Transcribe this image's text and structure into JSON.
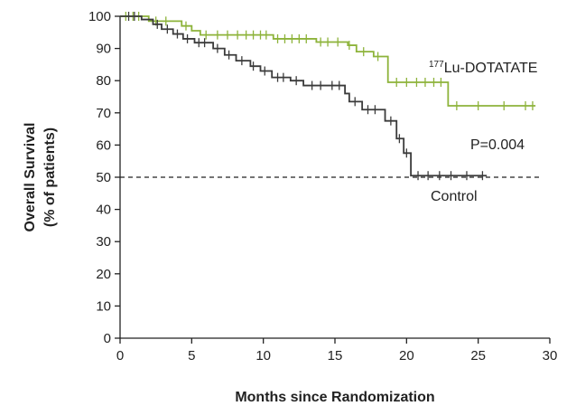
{
  "chart_data": {
    "type": "line",
    "subtype": "kaplan-meier",
    "title": "",
    "xlabel": "Months since Randomization",
    "ylabel_line1": "Overall Survival",
    "ylabel_line2": "(% of patients)",
    "xlim": [
      0,
      30
    ],
    "ylim": [
      0,
      100
    ],
    "xticks": [
      0,
      5,
      10,
      15,
      20,
      25,
      30
    ],
    "yticks": [
      0,
      10,
      20,
      30,
      40,
      50,
      60,
      70,
      80,
      90,
      100
    ],
    "grid": false,
    "reference_line": {
      "y": 50,
      "style": "dashed"
    },
    "series": [
      {
        "name": "177Lu-DOTATATE",
        "label_sup": "177",
        "label_main": "Lu-DOTATATE",
        "color": "#8db33a",
        "steps": [
          [
            0,
            100
          ],
          [
            1.9,
            100
          ],
          [
            2.0,
            98.5
          ],
          [
            4.2,
            98.5
          ],
          [
            4.3,
            97
          ],
          [
            4.9,
            97
          ],
          [
            5.0,
            95.5
          ],
          [
            5.5,
            95.5
          ],
          [
            5.6,
            94.2
          ],
          [
            10.6,
            94.2
          ],
          [
            10.7,
            93
          ],
          [
            13.6,
            93
          ],
          [
            13.7,
            92
          ],
          [
            15.8,
            92
          ],
          [
            15.9,
            91
          ],
          [
            16.4,
            91
          ],
          [
            16.5,
            89
          ],
          [
            17.6,
            89
          ],
          [
            17.7,
            87.5
          ],
          [
            18.6,
            87.5
          ],
          [
            18.7,
            79.5
          ],
          [
            22.8,
            79.5
          ],
          [
            22.9,
            72.2
          ],
          [
            29.0,
            72.2
          ]
        ],
        "censored": [
          [
            0.4,
            100
          ],
          [
            0.9,
            100
          ],
          [
            1.3,
            100
          ],
          [
            2.5,
            98.5
          ],
          [
            3.2,
            98.5
          ],
          [
            4.6,
            97
          ],
          [
            6.0,
            94.2
          ],
          [
            6.8,
            94.2
          ],
          [
            7.5,
            94.2
          ],
          [
            8.2,
            94.2
          ],
          [
            8.8,
            94.2
          ],
          [
            9.3,
            94.2
          ],
          [
            9.8,
            94.2
          ],
          [
            10.2,
            94.2
          ],
          [
            11.0,
            93
          ],
          [
            11.5,
            93
          ],
          [
            12.0,
            93
          ],
          [
            12.5,
            93
          ],
          [
            13.0,
            93
          ],
          [
            14.0,
            92
          ],
          [
            14.5,
            92
          ],
          [
            15.2,
            92
          ],
          [
            16.0,
            91
          ],
          [
            17.0,
            89
          ],
          [
            18.0,
            87.5
          ],
          [
            19.3,
            79.5
          ],
          [
            20.0,
            79.5
          ],
          [
            20.7,
            79.5
          ],
          [
            21.3,
            79.5
          ],
          [
            21.9,
            79.5
          ],
          [
            22.4,
            79.5
          ],
          [
            23.5,
            72.2
          ],
          [
            25.0,
            72.2
          ],
          [
            26.8,
            72.2
          ],
          [
            28.3,
            72.2
          ],
          [
            28.8,
            72.2
          ]
        ]
      },
      {
        "name": "Control",
        "color": "#3b3b3b",
        "steps": [
          [
            0,
            100
          ],
          [
            1.4,
            100
          ],
          [
            1.5,
            99
          ],
          [
            2.2,
            99
          ],
          [
            2.3,
            97.5
          ],
          [
            2.8,
            97.5
          ],
          [
            2.9,
            96
          ],
          [
            3.6,
            96
          ],
          [
            3.7,
            94.5
          ],
          [
            4.3,
            94.5
          ],
          [
            4.4,
            93
          ],
          [
            5.1,
            93
          ],
          [
            5.2,
            91.8
          ],
          [
            6.4,
            91.8
          ],
          [
            6.5,
            90
          ],
          [
            7.2,
            90
          ],
          [
            7.3,
            88
          ],
          [
            8.0,
            88
          ],
          [
            8.1,
            86.2
          ],
          [
            9.0,
            86.2
          ],
          [
            9.1,
            84.5
          ],
          [
            9.7,
            84.5
          ],
          [
            9.8,
            83
          ],
          [
            10.5,
            83
          ],
          [
            10.6,
            81
          ],
          [
            11.8,
            81
          ],
          [
            11.9,
            80
          ],
          [
            12.7,
            80
          ],
          [
            12.8,
            78.5
          ],
          [
            15.6,
            78.5
          ],
          [
            15.7,
            76
          ],
          [
            15.9,
            76
          ],
          [
            16.0,
            73.5
          ],
          [
            16.8,
            73.5
          ],
          [
            16.9,
            71
          ],
          [
            18.4,
            71
          ],
          [
            18.5,
            67.5
          ],
          [
            19.2,
            67.5
          ],
          [
            19.3,
            62
          ],
          [
            19.7,
            62
          ],
          [
            19.8,
            57.5
          ],
          [
            20.2,
            57.5
          ],
          [
            20.3,
            50.5
          ],
          [
            25.6,
            50.5
          ]
        ],
        "censored": [
          [
            0.6,
            100
          ],
          [
            1.0,
            100
          ],
          [
            2.6,
            97.5
          ],
          [
            3.3,
            96
          ],
          [
            4.0,
            94.5
          ],
          [
            4.7,
            93
          ],
          [
            5.5,
            91.8
          ],
          [
            5.9,
            91.8
          ],
          [
            6.8,
            90
          ],
          [
            7.6,
            88
          ],
          [
            8.5,
            86.2
          ],
          [
            9.3,
            84.5
          ],
          [
            10.1,
            83
          ],
          [
            11.0,
            81
          ],
          [
            11.4,
            81
          ],
          [
            12.3,
            80
          ],
          [
            13.4,
            78.5
          ],
          [
            14.0,
            78.5
          ],
          [
            14.8,
            78.5
          ],
          [
            15.3,
            78.5
          ],
          [
            16.4,
            73.5
          ],
          [
            17.3,
            71
          ],
          [
            17.8,
            71
          ],
          [
            18.9,
            67.5
          ],
          [
            19.5,
            62
          ],
          [
            20.0,
            57.5
          ],
          [
            20.8,
            50.5
          ],
          [
            21.5,
            50.5
          ],
          [
            22.3,
            50.5
          ],
          [
            23.1,
            50.5
          ],
          [
            24.2,
            50.5
          ],
          [
            25.3,
            50.5
          ]
        ]
      }
    ],
    "annotations": {
      "p_value": "P=0.004",
      "control_label": "Control"
    }
  }
}
